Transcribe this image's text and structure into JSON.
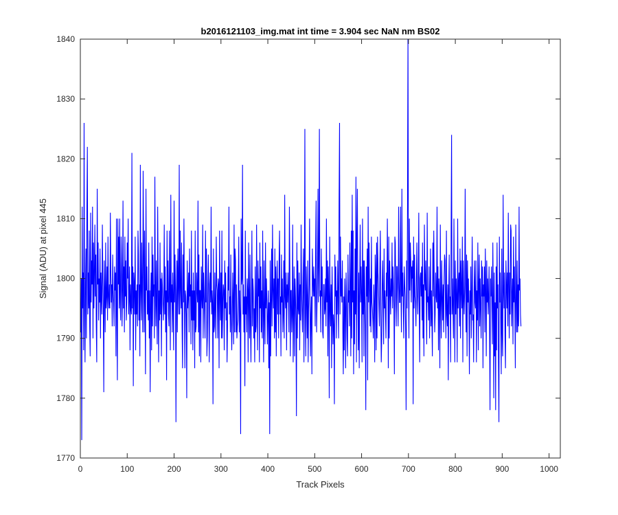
{
  "chart_data": {
    "type": "line",
    "title": "b2016121103_img.mat int time = 3.904 sec  NaN nm BS02",
    "xlabel": "Track Pixels",
    "ylabel": "Signal (ADU) at pixel 445",
    "xlim": [
      0,
      1024
    ],
    "ylim": [
      1770,
      1840
    ],
    "xticks": [
      "0",
      "100",
      "200",
      "300",
      "400",
      "500",
      "600",
      "700",
      "800",
      "900",
      "1000"
    ],
    "yticks": [
      "1770",
      "1780",
      "1790",
      "1800",
      "1810",
      "1820",
      "1830",
      "1840"
    ],
    "grid": false,
    "legend": "none",
    "line_color": "#0000ff",
    "series": [
      {
        "x_start": 1,
        "x_step": 1,
        "values": [
          1791,
          1800,
          1773,
          1812,
          1795,
          1801,
          1788,
          1826,
          1797,
          1786,
          1799,
          1805,
          1790,
          1812,
          1822,
          1794,
          1801,
          1795,
          1808,
          1792,
          1787,
          1811,
          1796,
          1803,
          1799,
          1812,
          1790,
          1806,
          1795,
          1801,
          1809,
          1797,
          1804,
          1792,
          1786,
          1815,
          1799,
          1806,
          1793,
          1800,
          1796,
          1805,
          1790,
          1801,
          1797,
          1794,
          1809,
          1800,
          1795,
          1781,
          1803,
          1798,
          1791,
          1806,
          1795,
          1797,
          1802,
          1793,
          1807,
          1797,
          1795,
          1799,
          1795,
          1811,
          1801,
          1796,
          1799,
          1792,
          1804,
          1798,
          1796,
          1792,
          1802,
          1798,
          1801,
          1787,
          1810,
          1795,
          1783,
          1810,
          1799,
          1807,
          1795,
          1810,
          1796,
          1793,
          1807,
          1802,
          1792,
          1798,
          1813,
          1795,
          1802,
          1791,
          1807,
          1797,
          1803,
          1793,
          1796,
          1806,
          1800,
          1810,
          1794,
          1797,
          1802,
          1788,
          1799,
          1795,
          1794,
          1821,
          1795,
          1802,
          1782,
          1801,
          1799,
          1794,
          1807,
          1788,
          1798,
          1794,
          1799,
          1792,
          1808,
          1804,
          1793,
          1799,
          1787,
          1819,
          1798,
          1793,
          1806,
          1798,
          1791,
          1818,
          1805,
          1791,
          1808,
          1796,
          1784,
          1815,
          1798,
          1802,
          1794,
          1798,
          1793,
          1806,
          1790,
          1798,
          1781,
          1797,
          1801,
          1788,
          1807,
          1792,
          1804,
          1797,
          1799,
          1790,
          1817,
          1799,
          1792,
          1803,
          1795,
          1789,
          1812,
          1800,
          1786,
          1798,
          1793,
          1806,
          1794,
          1800,
          1787,
          1801,
          1799,
          1796,
          1793,
          1797,
          1809,
          1794,
          1802,
          1791,
          1798,
          1783,
          1808,
          1796,
          1803,
          1794,
          1792,
          1808,
          1797,
          1788,
          1814,
          1796,
          1799,
          1791,
          1801,
          1796,
          1788,
          1813,
          1796,
          1804,
          1798,
          1776,
          1797,
          1803,
          1791,
          1805,
          1799,
          1794,
          1819,
          1794,
          1808,
          1798,
          1795,
          1806,
          1792,
          1785,
          1804,
          1796,
          1810,
          1797,
          1785,
          1798,
          1797,
          1794,
          1780,
          1803,
          1795,
          1797,
          1801,
          1791,
          1805,
          1797,
          1799,
          1789,
          1808,
          1793,
          1798,
          1788,
          1801,
          1793,
          1798,
          1785,
          1808,
          1791,
          1792,
          1801,
          1798,
          1796,
          1813,
          1791,
          1804,
          1787,
          1798,
          1798,
          1786,
          1802,
          1797,
          1795,
          1809,
          1790,
          1801,
          1798,
          1794,
          1790,
          1808,
          1796,
          1805,
          1787,
          1790,
          1799,
          1804,
          1796,
          1786,
          1799,
          1801,
          1796,
          1812,
          1794,
          1798,
          1796,
          1779,
          1805,
          1791,
          1792,
          1801,
          1795,
          1790,
          1807,
          1799,
          1798,
          1790,
          1800,
          1799,
          1785,
          1808,
          1797,
          1793,
          1801,
          1790,
          1808,
          1790,
          1796,
          1799,
          1798,
          1788,
          1803,
          1795,
          1801,
          1793,
          1796,
          1786,
          1792,
          1802,
          1798,
          1812,
          1794,
          1797,
          1791,
          1804,
          1794,
          1788,
          1793,
          1801,
          1796,
          1789,
          1809,
          1791,
          1805,
          1803,
          1791,
          1799,
          1790,
          1792,
          1793,
          1799,
          1807,
          1791,
          1798,
          1794,
          1774,
          1810,
          1799,
          1800,
          1819,
          1794,
          1799,
          1791,
          1797,
          1782,
          1808,
          1794,
          1797,
          1791,
          1800,
          1798,
          1786,
          1806,
          1796,
          1790,
          1804,
          1792,
          1786,
          1797,
          1808,
          1792,
          1800,
          1798,
          1790,
          1795,
          1786,
          1802,
          1791,
          1792,
          1809,
          1796,
          1788,
          1803,
          1797,
          1800,
          1786,
          1806,
          1795,
          1802,
          1791,
          1798,
          1790,
          1808,
          1795,
          1786,
          1803,
          1794,
          1789,
          1806,
          1795,
          1800,
          1796,
          1789,
          1794,
          1798,
          1785,
          1796,
          1774,
          1803,
          1787,
          1796,
          1805,
          1792,
          1809,
          1798,
          1795,
          1800,
          1790,
          1805,
          1791,
          1802,
          1787,
          1798,
          1803,
          1794,
          1800,
          1790,
          1803,
          1808,
          1794,
          1797,
          1787,
          1804,
          1796,
          1800,
          1791,
          1794,
          1803,
          1790,
          1814,
          1797,
          1795,
          1801,
          1788,
          1799,
          1796,
          1801,
          1797,
          1791,
          1812,
          1802,
          1787,
          1798,
          1798,
          1791,
          1794,
          1809,
          1786,
          1795,
          1802,
          1787,
          1800,
          1797,
          1792,
          1777,
          1806,
          1790,
          1803,
          1795,
          1794,
          1801,
          1788,
          1799,
          1793,
          1809,
          1798,
          1794,
          1791,
          1800,
          1805,
          1786,
          1799,
          1825,
          1794,
          1787,
          1802,
          1797,
          1790,
          1803,
          1786,
          1795,
          1799,
          1810,
          1795,
          1787,
          1794,
          1797,
          1784,
          1805,
          1800,
          1797,
          1802,
          1797,
          1800,
          1792,
          1805,
          1813,
          1791,
          1796,
          1801,
          1815,
          1796,
          1803,
          1825,
          1797,
          1798,
          1791,
          1805,
          1797,
          1802,
          1791,
          1790,
          1799,
          1799,
          1794,
          1795,
          1800,
          1792,
          1810,
          1796,
          1803,
          1787,
          1802,
          1797,
          1780,
          1807,
          1795,
          1792,
          1799,
          1785,
          1802,
          1795,
          1789,
          1794,
          1792,
          1779,
          1804,
          1797,
          1802,
          1790,
          1798,
          1794,
          1803,
          1797,
          1790,
          1813,
          1826,
          1794,
          1807,
          1797,
          1800,
          1796,
          1803,
          1791,
          1784,
          1797,
          1788,
          1800,
          1795,
          1785,
          1801,
          1797,
          1790,
          1787,
          1804,
          1796,
          1798,
          1792,
          1806,
          1799,
          1787,
          1808,
          1790,
          1814,
          1796,
          1808,
          1784,
          1798,
          1789,
          1805,
          1794,
          1817,
          1786,
          1807,
          1815,
          1797,
          1788,
          1801,
          1785,
          1799,
          1809,
          1796,
          1802,
          1797,
          1786,
          1810,
          1794,
          1803,
          1787,
          1803,
          1797,
          1792,
          1778,
          1802,
          1797,
          1805,
          1783,
          1812,
          1796,
          1806,
          1799,
          1792,
          1800,
          1791,
          1807,
          1796,
          1795,
          1793,
          1790,
          1799,
          1796,
          1786,
          1804,
          1801,
          1788,
          1806,
          1790,
          1807,
          1801,
          1799,
          1795,
          1792,
          1802,
          1808,
          1794,
          1786,
          1790,
          1799,
          1803,
          1796,
          1789,
          1805,
          1795,
          1798,
          1794,
          1790,
          1801,
          1797,
          1810,
          1800,
          1785,
          1807,
          1790,
          1803,
          1798,
          1794,
          1800,
          1797,
          1806,
          1795,
          1802,
          1799,
          1795,
          1784,
          1807,
          1806,
          1796,
          1792,
          1802,
          1802,
          1797,
          1792,
          1812,
          1800,
          1796,
          1796,
          1812,
          1798,
          1791,
          1815,
          1797,
          1801,
          1795,
          1790,
          1802,
          1799,
          1797,
          1791,
          1778,
          1803,
          1795,
          1812,
          1841,
          1800,
          1790,
          1810,
          1798,
          1806,
          1803,
          1796,
          1802,
          1800,
          1803,
          1779,
          1807,
          1795,
          1804,
          1797,
          1796,
          1792,
          1800,
          1806,
          1797,
          1794,
          1799,
          1811,
          1796,
          1786,
          1800,
          1801,
          1797,
          1802,
          1793,
          1806,
          1790,
          1799,
          1787,
          1809,
          1800,
          1798,
          1803,
          1796,
          1789,
          1811,
          1796,
          1797,
          1793,
          1802,
          1790,
          1796,
          1805,
          1792,
          1798,
          1793,
          1787,
          1806,
          1797,
          1808,
          1800,
          1791,
          1794,
          1801,
          1797,
          1796,
          1812,
          1795,
          1802,
          1788,
          1800,
          1797,
          1785,
          1809,
          1796,
          1790,
          1803,
          1797,
          1793,
          1799,
          1791,
          1800,
          1804,
          1803,
          1795,
          1790,
          1808,
          1794,
          1792,
          1799,
          1783,
          1798,
          1804,
          1794,
          1797,
          1786,
          1808,
          1824,
          1794,
          1800,
          1795,
          1790,
          1810,
          1798,
          1786,
          1803,
          1794,
          1800,
          1797,
          1786,
          1810,
          1795,
          1799,
          1801,
          1792,
          1805,
          1790,
          1803,
          1798,
          1795,
          1807,
          1786,
          1803,
          1797,
          1794,
          1799,
          1815,
          1798,
          1791,
          1804,
          1787,
          1803,
          1796,
          1800,
          1794,
          1784,
          1798,
          1794,
          1802,
          1790,
          1797,
          1807,
          1793,
          1794,
          1786,
          1798,
          1803,
          1796,
          1795,
          1803,
          1786,
          1798,
          1793,
          1806,
          1788,
          1799,
          1804,
          1792,
          1800,
          1795,
          1790,
          1803,
          1797,
          1802,
          1785,
          1799,
          1797,
          1802,
          1791,
          1805,
          1798,
          1787,
          1803,
          1796,
          1800,
          1794,
          1797,
          1802,
          1792,
          1778,
          1800,
          1797,
          1802,
          1795,
          1789,
          1806,
          1797,
          1780,
          1801,
          1787,
          1796,
          1778,
          1802,
          1788,
          1806,
          1795,
          1799,
          1786,
          1776,
          1807,
          1796,
          1801,
          1792,
          1784,
          1805,
          1791,
          1787,
          1814,
          1798,
          1795,
          1801,
          1790,
          1785,
          1803,
          1799,
          1795,
          1801,
          1792,
          1811,
          1799,
          1790,
          1801,
          1794,
          1809,
          1808,
          1792,
          1797,
          1800,
          1789,
          1807,
          1796,
          1802,
          1795,
          1785,
          1809,
          1797,
          1791,
          1803,
          1791,
          1799,
          1792,
          1812,
          1798,
          1800,
          1794,
          1792
        ]
      }
    ]
  }
}
